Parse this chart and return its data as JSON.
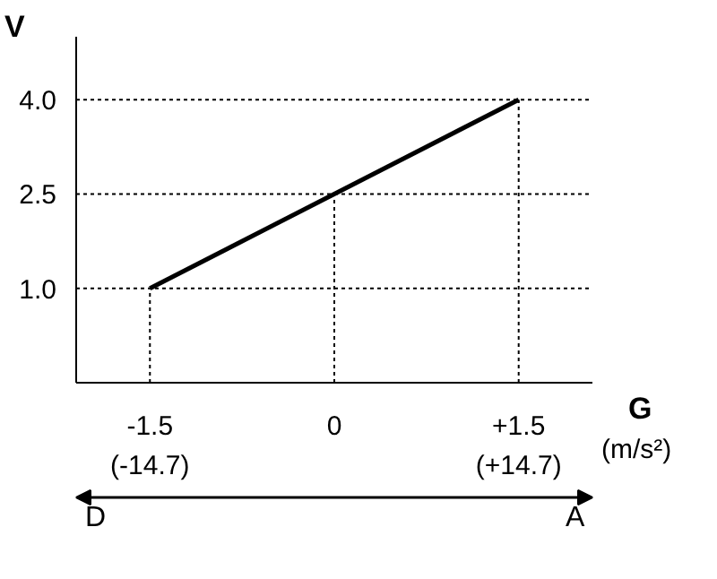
{
  "chart_data": {
    "type": "line",
    "xlabel": "G",
    "ylabel": "V",
    "x2label": "(m/s²)",
    "x": [
      -1.5,
      1.5
    ],
    "series": [
      {
        "color": "#000000",
        "values": [
          1.0,
          4.0
        ]
      }
    ],
    "xlim": [
      -2.1,
      2.1
    ],
    "ylim": [
      -0.5,
      5.0
    ],
    "xticks": [
      -1.5,
      0,
      {
        "value": 1.5,
        "label": "+1.5"
      }
    ],
    "yticks": [
      {
        "value": 1.0,
        "label": "1.0"
      },
      {
        "value": 2.5,
        "label": "2.5"
      },
      {
        "value": 4.0,
        "label": "4.0"
      }
    ],
    "x2lim": [
      -20.58,
      20.58
    ],
    "x2ticks": [
      {
        "value": -14.7,
        "label": "(-14.7)"
      },
      {
        "value": 14.7,
        "label": "(+14.7)"
      }
    ],
    "grid": "y",
    "marker": "none",
    "line_style": "solid",
    "ref_lines": [
      {
        "axis": "x",
        "value": -1.5,
        "line_style": "dotted"
      },
      {
        "axis": "x",
        "value": 0,
        "line_style": "dotted"
      },
      {
        "axis": "x",
        "value": 1.5,
        "line_style": "dotted"
      }
    ],
    "annotations": [
      "D",
      "A"
    ]
  }
}
